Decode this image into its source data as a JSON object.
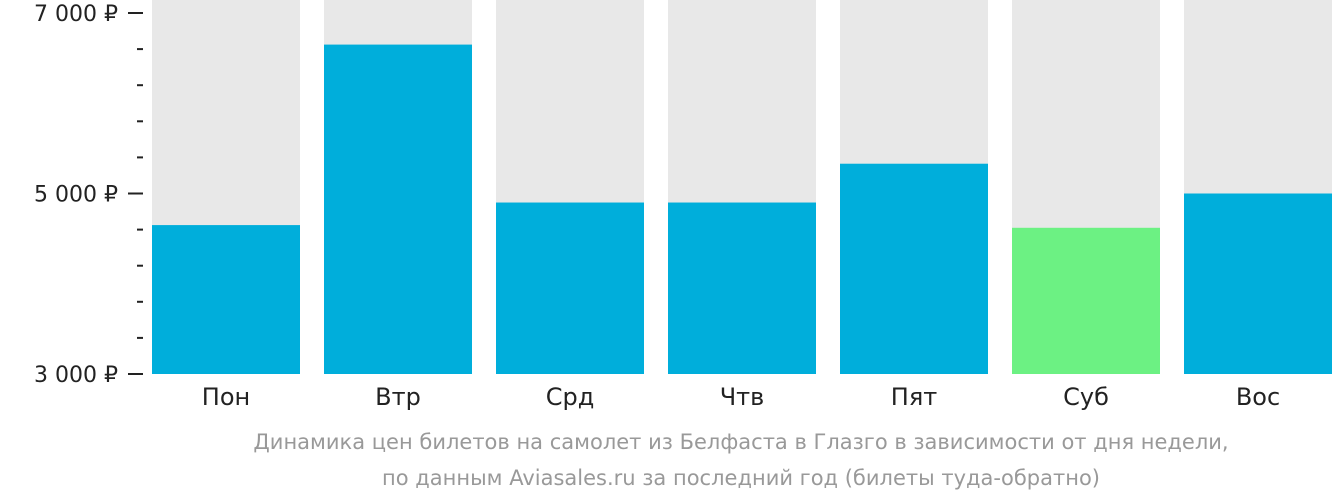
{
  "chart_data": {
    "type": "bar",
    "categories": [
      "Пон",
      "Втр",
      "Срд",
      "Чтв",
      "Пят",
      "Суб",
      "Вос"
    ],
    "values": [
      4650,
      6650,
      4900,
      4900,
      5330,
      4620,
      5000
    ],
    "highlight_index": 5,
    "ylim": [
      3000,
      7000
    ],
    "y_major_ticks": [
      {
        "value": 3000,
        "label": "3 000 ₽"
      },
      {
        "value": 5000,
        "label": "5 000 ₽"
      },
      {
        "value": 7000,
        "label": "7 000 ₽"
      }
    ],
    "y_minor_step": 400,
    "xlabel": "",
    "ylabel": "",
    "grid": false
  },
  "caption": {
    "line1": "Динамика цен билетов на самолет из Белфаста в Глазго в зависимости от дня недели,",
    "line2": "по данным Aviasales.ru за последний год (билеты туда-обратно)"
  },
  "colors": {
    "bar": "#00AEDB",
    "bar_highlight": "#6CF183",
    "bar_background": "#E8E8E8",
    "tick": "#222222",
    "caption": "#999999"
  }
}
